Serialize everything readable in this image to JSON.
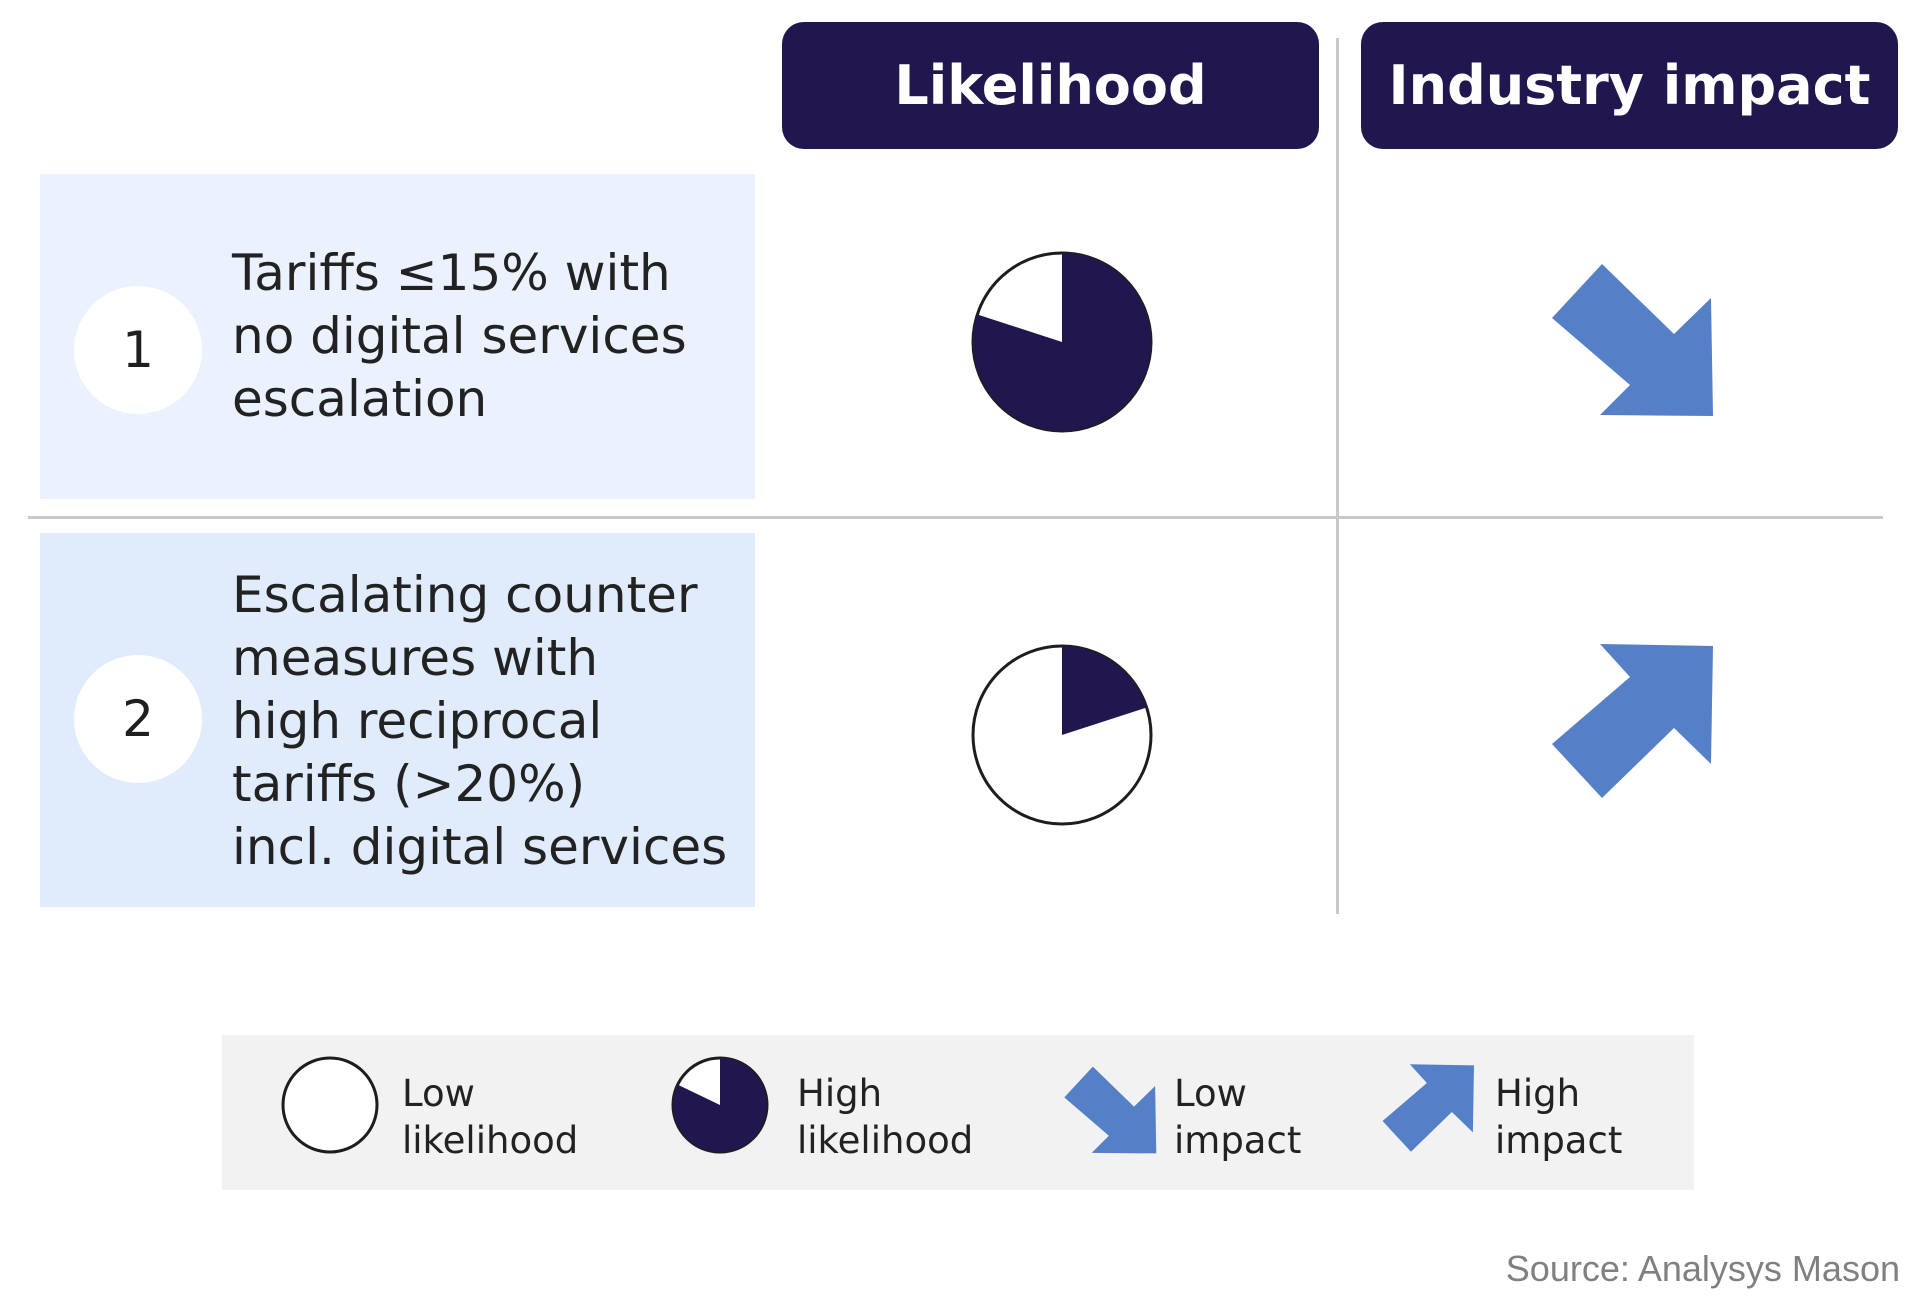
{
  "headers": {
    "likelihood": "Likelihood",
    "industry_impact": "Industry impact"
  },
  "rows": [
    {
      "number": "1",
      "text_lines": [
        "Tariffs ≤15% with",
        "no digital services",
        "escalation"
      ],
      "likelihood": 0.8,
      "impact": "low"
    },
    {
      "number": "2",
      "text_lines": [
        "Escalating counter",
        "measures with",
        "high reciprocal",
        "tariffs (>20%)",
        "incl. digital services"
      ],
      "likelihood": 0.2,
      "impact": "high"
    }
  ],
  "legend": [
    {
      "icon": "empty-circle-icon",
      "lines": [
        "Low",
        "likelihood"
      ]
    },
    {
      "icon": "pie-icon",
      "lines": [
        "High",
        "likelihood"
      ]
    },
    {
      "icon": "arrow-down-right-icon",
      "lines": [
        "Low",
        "impact"
      ]
    },
    {
      "icon": "arrow-up-right-icon",
      "lines": [
        "High",
        "impact"
      ]
    }
  ],
  "source": "Source: Analysys Mason",
  "colors": {
    "navy": "#21174e",
    "arrow_blue": "#5580c8",
    "row1_bg": "#ebf2fd",
    "row2_bg": "#e0ecfc",
    "legend_bg": "#f2f2f2",
    "divider": "#c9c9c9"
  }
}
